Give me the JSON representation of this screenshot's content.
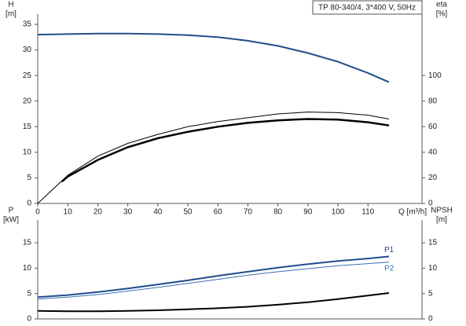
{
  "chart_data": [
    {
      "type": "line",
      "title": "TP 80-340/4, 3*400 V, 50Hz",
      "ylabel": "H",
      "yunit": "[m]",
      "y2label": "eta",
      "y2unit": "[%]",
      "xlabel": "Q [m³/h]",
      "xlim": [
        0,
        128
      ],
      "xticks": [
        0,
        10,
        20,
        30,
        40,
        50,
        60,
        70,
        80,
        90,
        100,
        110
      ],
      "ylim": [
        0,
        37
      ],
      "yticks": [
        0,
        5,
        10,
        15,
        20,
        25,
        30,
        35
      ],
      "y2lim": [
        0,
        148
      ],
      "y2ticks": [
        0,
        20,
        40,
        60,
        80,
        100
      ],
      "grid": false,
      "series": [
        {
          "color": "#1f4e8c",
          "line_width": 2,
          "x": [
            0,
            10,
            20,
            30,
            40,
            50,
            60,
            70,
            80,
            90,
            100,
            110,
            117
          ],
          "values": [
            33,
            33.1,
            33.2,
            33.2,
            33.1,
            32.9,
            32.5,
            31.8,
            30.8,
            29.4,
            27.7,
            25.5,
            23.7
          ]
        },
        {
          "color": "#000000",
          "line_width": 1,
          "axis": "y2",
          "x": [
            0,
            10,
            20,
            30,
            40,
            50,
            60,
            70,
            80,
            90,
            100,
            110,
            117
          ],
          "values": [
            0,
            22,
            37,
            47,
            54,
            60,
            64,
            67,
            70,
            71.5,
            71,
            69,
            66
          ]
        },
        {
          "color": "#000000",
          "line_width": 2.5,
          "axis": "y2",
          "x": [
            8,
            10,
            20,
            30,
            40,
            50,
            60,
            70,
            80,
            90,
            100,
            110,
            117
          ],
          "values": [
            17,
            21,
            34,
            44,
            51,
            56,
            60,
            63,
            65,
            66,
            65.5,
            63.5,
            61
          ]
        }
      ]
    },
    {
      "type": "line",
      "ylabel": "P",
      "yunit": "[kW]",
      "y2label": "NPSH",
      "y2unit": "[m]",
      "xlim": [
        0,
        128
      ],
      "ylim": [
        0,
        19.5
      ],
      "yticks": [
        0,
        5,
        10,
        15
      ],
      "y2lim": [
        0,
        19.5
      ],
      "y2ticks": [
        0,
        5,
        10,
        15
      ],
      "grid": false,
      "series": [
        {
          "name": "P1",
          "color": "#1f4e8c",
          "line_width": 2,
          "x": [
            0,
            10,
            20,
            30,
            40,
            50,
            60,
            70,
            80,
            90,
            100,
            110,
            117
          ],
          "values": [
            4.3,
            4.7,
            5.3,
            6.0,
            6.8,
            7.6,
            8.5,
            9.3,
            10.1,
            10.8,
            11.4,
            11.9,
            12.3
          ]
        },
        {
          "name": "P2",
          "color": "#3a6fb5",
          "line_width": 1,
          "x": [
            0,
            10,
            20,
            30,
            40,
            50,
            60,
            70,
            80,
            90,
            100,
            110,
            117
          ],
          "values": [
            3.9,
            4.3,
            4.8,
            5.5,
            6.2,
            7.0,
            7.8,
            8.6,
            9.3,
            9.9,
            10.5,
            10.9,
            11.2
          ]
        },
        {
          "color": "#000000",
          "line_width": 2,
          "axis": "y2",
          "x": [
            0,
            10,
            20,
            30,
            40,
            50,
            60,
            70,
            80,
            90,
            100,
            110,
            117
          ],
          "values": [
            1.6,
            1.5,
            1.5,
            1.6,
            1.7,
            1.9,
            2.1,
            2.4,
            2.8,
            3.3,
            3.9,
            4.6,
            5.1
          ]
        }
      ]
    }
  ]
}
